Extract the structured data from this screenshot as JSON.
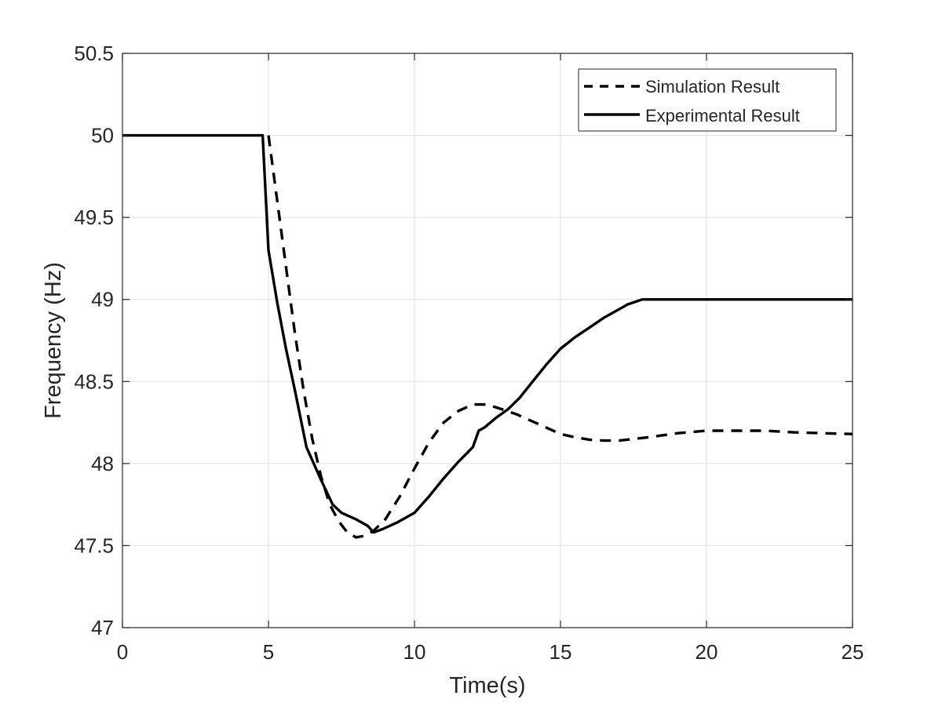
{
  "chart_data": {
    "type": "line",
    "xlabel": "Time(s)",
    "ylabel": "Frequency (Hz)",
    "xlim": [
      0,
      25
    ],
    "ylim": [
      47,
      50.5
    ],
    "xticks": [
      0,
      5,
      10,
      15,
      20,
      25
    ],
    "yticks": [
      47,
      47.5,
      48,
      48.5,
      49,
      49.5,
      50,
      50.5
    ],
    "xtick_labels": [
      "0",
      "5",
      "10",
      "15",
      "20",
      "25"
    ],
    "ytick_labels": [
      "47",
      "47.5",
      "48",
      "48.5",
      "49",
      "49.5",
      "50",
      "50.5"
    ],
    "grid": true,
    "legend_position": "top-right",
    "series": [
      {
        "name": "Simulation Result",
        "style": "dashed",
        "color": "#000000",
        "x": [
          5.0,
          5.3,
          5.6,
          5.9,
          6.2,
          6.5,
          6.8,
          7.1,
          7.4,
          7.7,
          8.0,
          8.3,
          8.6,
          9.0,
          9.5,
          10.0,
          10.5,
          11.0,
          11.5,
          12.0,
          12.5,
          13.0,
          13.5,
          14.0,
          14.5,
          15.0,
          15.5,
          16.0,
          16.5,
          17.0,
          17.5,
          18.0,
          19.0,
          20.0,
          21.0,
          22.0,
          23.0,
          24.0,
          25.0
        ],
        "y": [
          50.0,
          49.6,
          49.2,
          48.8,
          48.45,
          48.15,
          47.92,
          47.75,
          47.65,
          47.58,
          47.55,
          47.56,
          47.59,
          47.66,
          47.8,
          47.97,
          48.13,
          48.25,
          48.32,
          48.36,
          48.36,
          48.33,
          48.3,
          48.26,
          48.22,
          48.18,
          48.16,
          48.145,
          48.14,
          48.14,
          48.15,
          48.16,
          48.185,
          48.2,
          48.2,
          48.2,
          48.19,
          48.185,
          48.18
        ]
      },
      {
        "name": "Experimental Result",
        "style": "solid",
        "color": "#000000",
        "x": [
          0,
          4.8,
          5.0,
          5.3,
          5.6,
          5.9,
          6.3,
          6.8,
          7.2,
          7.5,
          8.0,
          8.4,
          8.6,
          8.9,
          9.4,
          10.0,
          10.5,
          11.0,
          11.5,
          12.0,
          12.2,
          12.4,
          12.8,
          13.2,
          13.6,
          14.0,
          14.5,
          15.0,
          15.5,
          16.0,
          16.5,
          17.0,
          17.3,
          17.8,
          18.5,
          20.0,
          22.5,
          25.0
        ],
        "y": [
          50.0,
          50.0,
          49.3,
          48.98,
          48.7,
          48.45,
          48.1,
          47.9,
          47.75,
          47.7,
          47.66,
          47.62,
          47.58,
          47.6,
          47.64,
          47.7,
          47.8,
          47.91,
          48.01,
          48.1,
          48.2,
          48.22,
          48.28,
          48.33,
          48.4,
          48.49,
          48.6,
          48.7,
          48.77,
          48.83,
          48.89,
          48.94,
          48.97,
          49.0,
          49.0,
          49.0,
          49.0,
          49.0
        ]
      }
    ]
  }
}
